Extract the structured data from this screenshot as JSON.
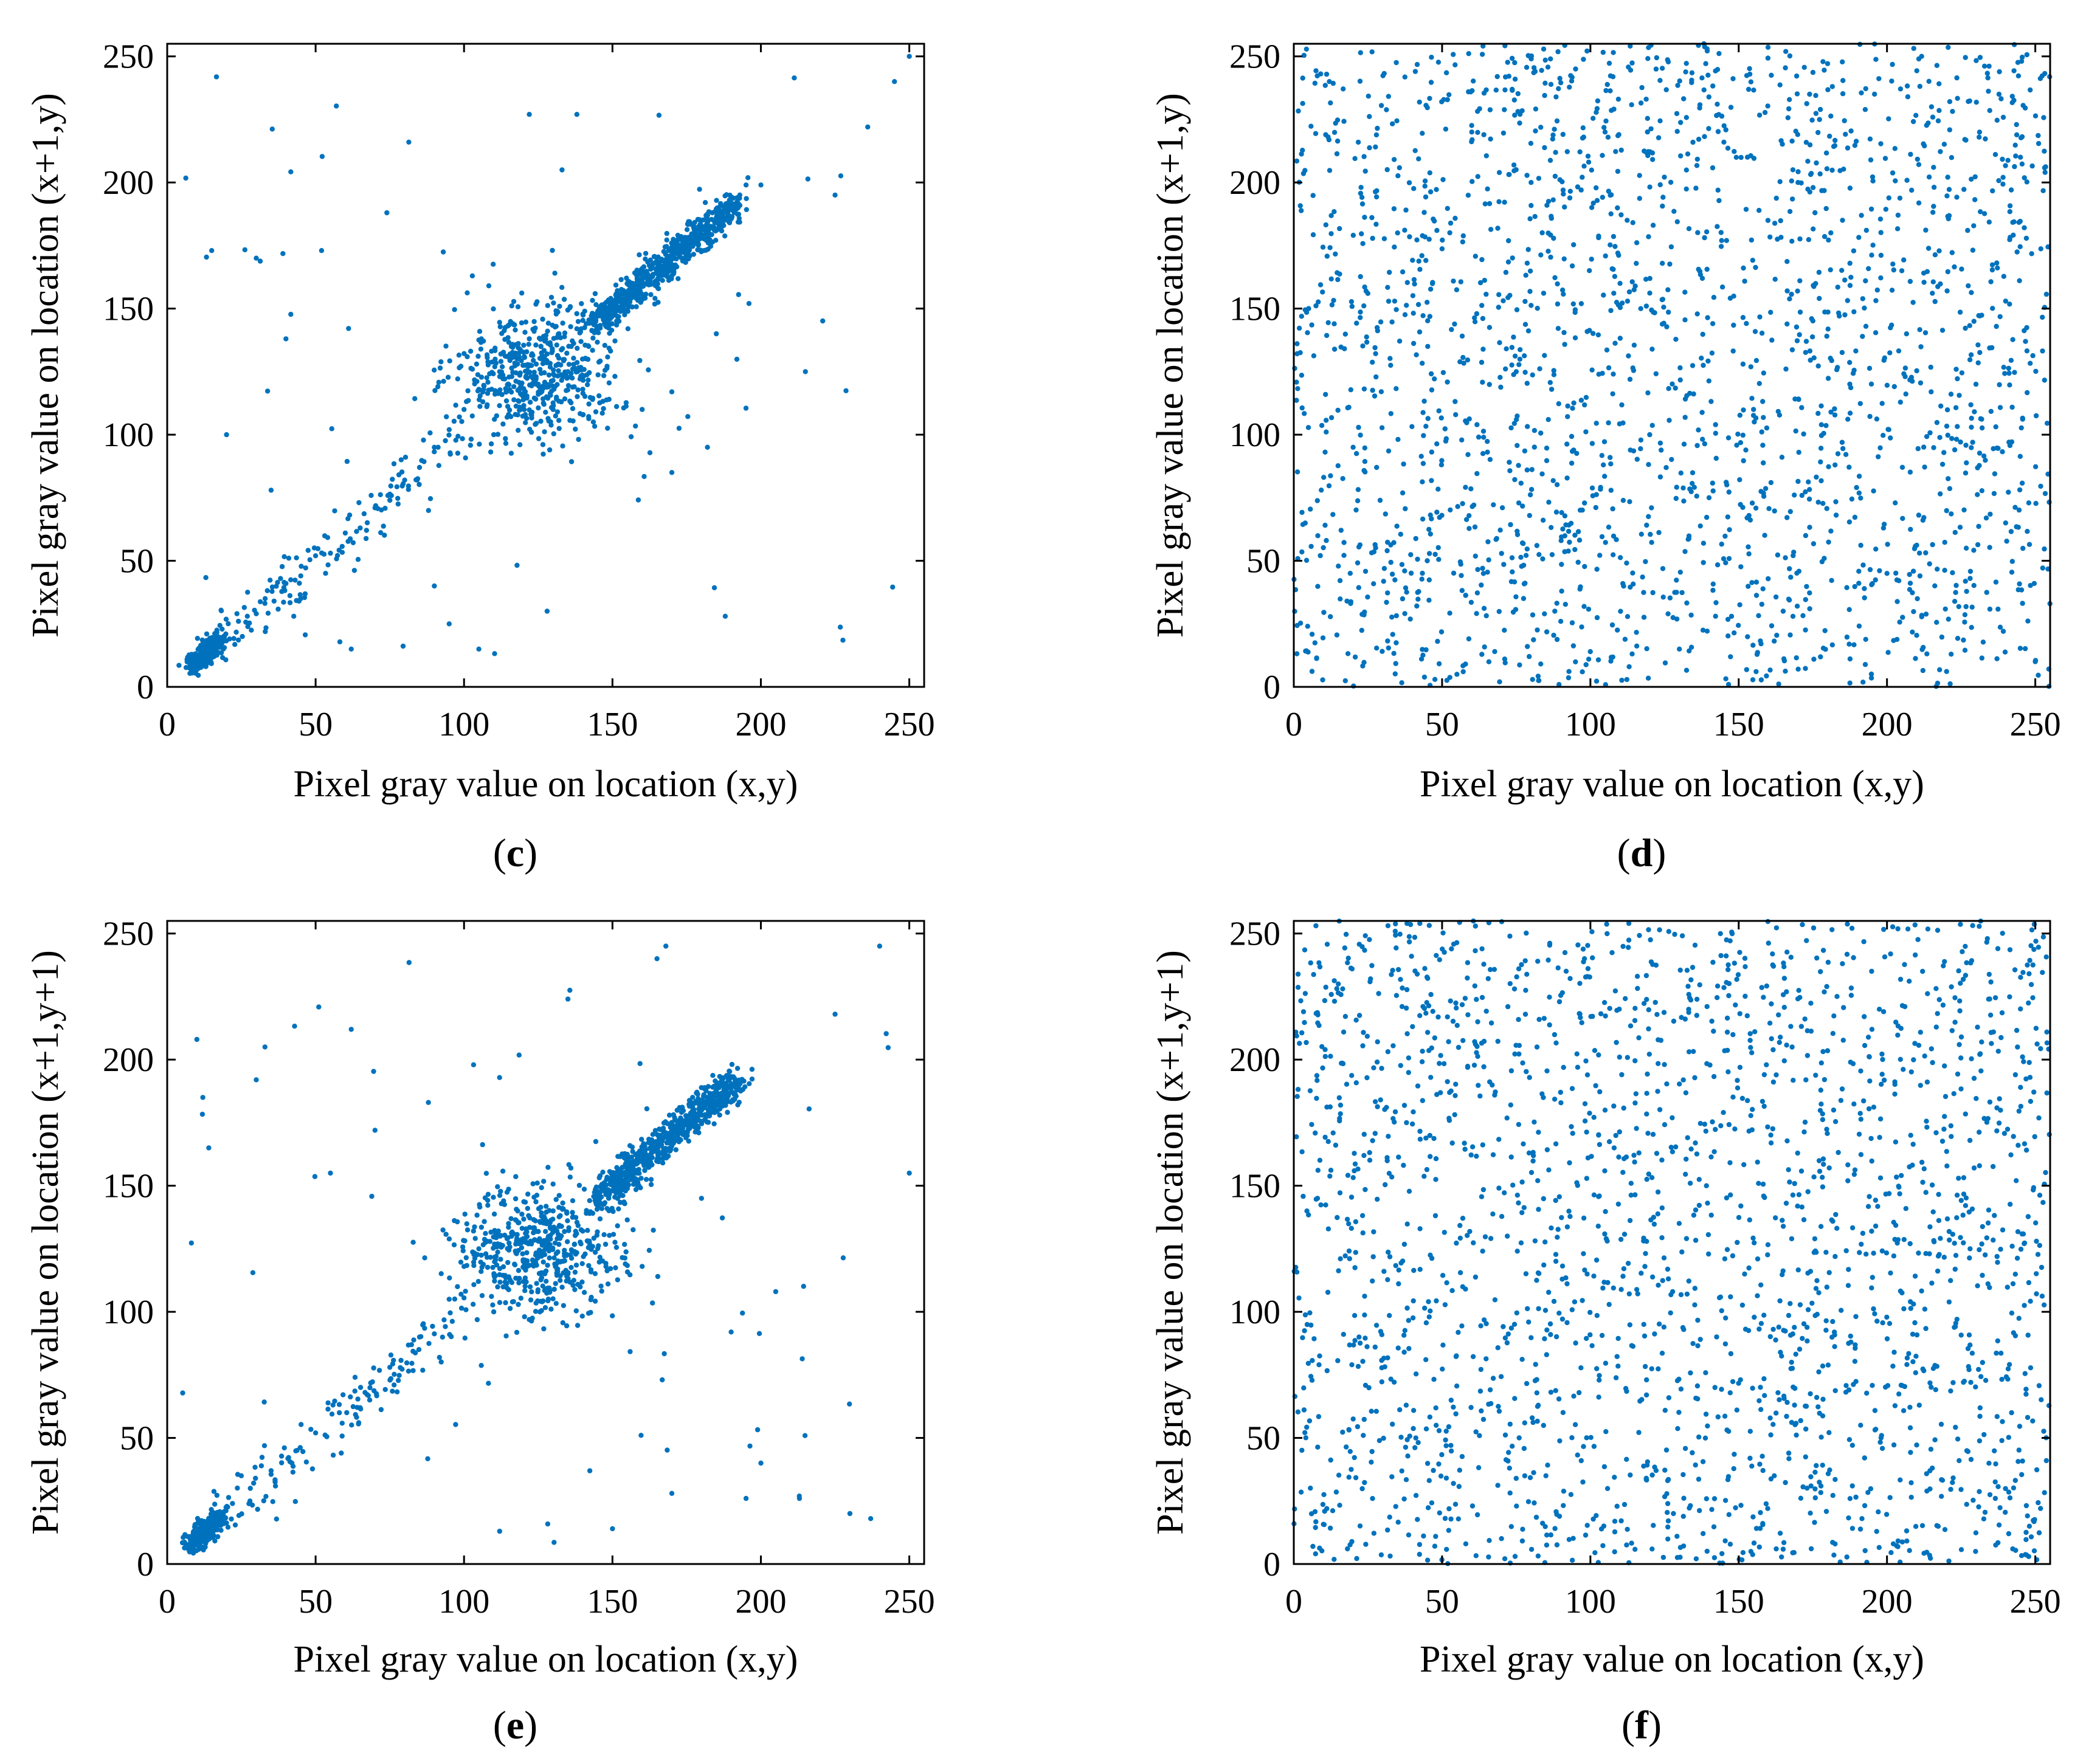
{
  "colors": {
    "points": "#0072BD",
    "axes": "#000000",
    "background": "#ffffff"
  },
  "chart_data": [
    {
      "id": "c",
      "type": "scatter",
      "panel_label": "c",
      "xlabel": "Pixel gray value on location (x,y)",
      "ylabel": "Pixel gray value on location (x+1,y)",
      "xlim": [
        0,
        255
      ],
      "ylim": [
        0,
        255
      ],
      "xticks": [
        0,
        50,
        100,
        150,
        200,
        250
      ],
      "yticks": [
        0,
        50,
        100,
        150,
        200,
        250
      ],
      "pattern": "correlated",
      "points": [
        [
          8,
          10
        ],
        [
          10,
          12
        ],
        [
          12,
          14
        ],
        [
          14,
          13
        ],
        [
          15,
          17
        ],
        [
          17,
          16
        ],
        [
          19,
          20
        ],
        [
          21,
          19
        ],
        [
          24,
          26
        ],
        [
          27,
          28
        ],
        [
          30,
          29
        ],
        [
          33,
          35
        ],
        [
          36,
          34
        ],
        [
          40,
          41
        ],
        [
          45,
          44
        ],
        [
          50,
          52
        ],
        [
          55,
          53
        ],
        [
          60,
          61
        ],
        [
          65,
          63
        ],
        [
          70,
          71
        ],
        [
          75,
          74
        ],
        [
          80,
          82
        ],
        [
          85,
          87
        ],
        [
          90,
          95
        ],
        [
          95,
          102
        ],
        [
          100,
          110
        ],
        [
          105,
          118
        ],
        [
          110,
          100
        ],
        [
          112,
          125
        ],
        [
          115,
          108
        ],
        [
          118,
          130
        ],
        [
          120,
          115
        ],
        [
          122,
          138
        ],
        [
          125,
          120
        ],
        [
          128,
          132
        ],
        [
          130,
          110
        ],
        [
          132,
          140
        ],
        [
          135,
          125
        ],
        [
          138,
          142
        ],
        [
          140,
          118
        ],
        [
          142,
          135
        ],
        [
          145,
          147
        ],
        [
          150,
          151
        ],
        [
          155,
          154
        ],
        [
          160,
          161
        ],
        [
          165,
          166
        ],
        [
          170,
          171
        ],
        [
          175,
          176
        ],
        [
          180,
          182
        ],
        [
          185,
          186
        ],
        [
          190,
          192
        ],
        [
          195,
          199
        ],
        [
          200,
          199
        ],
        [
          122,
          227
        ],
        [
          138,
          227
        ],
        [
          133,
          205
        ],
        [
          150,
          150
        ],
        [
          74,
          188
        ],
        [
          40,
          138
        ],
        [
          15,
          173
        ],
        [
          30,
          170
        ],
        [
          52,
          173
        ],
        [
          90,
          40
        ],
        [
          95,
          25
        ],
        [
          105,
          15
        ],
        [
          170,
          85
        ],
        [
          188,
          28
        ],
        [
          182,
          95
        ],
        [
          215,
          125
        ],
        [
          225,
          195
        ],
        [
          236,
          222
        ],
        [
          245,
          240
        ],
        [
          250,
          250
        ],
        [
          20,
          100
        ],
        [
          35,
          78
        ],
        [
          62,
          15
        ],
        [
          128,
          30
        ],
        [
          160,
          110
        ],
        [
          170,
          117
        ],
        [
          185,
          140
        ],
        [
          196,
          152
        ]
      ]
    },
    {
      "id": "d",
      "type": "scatter",
      "panel_label": "d",
      "xlabel": "Pixel gray value on location (x,y)",
      "ylabel": "Pixel gray value on location (x+1,y)",
      "xlim": [
        0,
        255
      ],
      "ylim": [
        0,
        255
      ],
      "xticks": [
        0,
        50,
        100,
        150,
        200,
        250
      ],
      "yticks": [
        0,
        50,
        100,
        150,
        200,
        250
      ],
      "pattern": "uniform",
      "points": [
        [
          12,
          240
        ],
        [
          35,
          180
        ],
        [
          60,
          220
        ],
        [
          88,
          30
        ],
        [
          110,
          160
        ],
        [
          140,
          75
        ],
        [
          170,
          200
        ],
        [
          200,
          45
        ],
        [
          230,
          120
        ],
        [
          250,
          10
        ],
        [
          20,
          95
        ],
        [
          45,
          50
        ],
        [
          75,
          125
        ],
        [
          95,
          245
        ],
        [
          130,
          15
        ],
        [
          155,
          110
        ],
        [
          185,
          185
        ],
        [
          215,
          230
        ],
        [
          240,
          65
        ],
        [
          5,
          150
        ],
        [
          55,
          5
        ],
        [
          80,
          200
        ],
        [
          120,
          100
        ],
        [
          165,
          30
        ],
        [
          205,
          165
        ],
        [
          245,
          210
        ]
      ]
    },
    {
      "id": "e",
      "type": "scatter",
      "panel_label": "e",
      "xlabel": "Pixel gray value on location (x,y)",
      "ylabel": "Pixel gray value on location (x+1,y+1)",
      "xlim": [
        0,
        255
      ],
      "ylim": [
        0,
        255
      ],
      "xticks": [
        0,
        50,
        100,
        150,
        200,
        250
      ],
      "yticks": [
        0,
        50,
        100,
        150,
        200,
        250
      ],
      "pattern": "correlated",
      "points": [
        [
          8,
          10
        ],
        [
          10,
          12
        ],
        [
          12,
          15
        ],
        [
          15,
          14
        ],
        [
          18,
          20
        ],
        [
          22,
          24
        ],
        [
          28,
          30
        ],
        [
          35,
          37
        ],
        [
          42,
          40
        ],
        [
          50,
          52
        ],
        [
          58,
          60
        ],
        [
          65,
          62
        ],
        [
          75,
          78
        ],
        [
          85,
          90
        ],
        [
          95,
          105
        ],
        [
          100,
          118
        ],
        [
          105,
          125
        ],
        [
          110,
          100
        ],
        [
          115,
          135
        ],
        [
          120,
          112
        ],
        [
          125,
          128
        ],
        [
          130,
          140
        ],
        [
          135,
          115
        ],
        [
          140,
          132
        ],
        [
          145,
          146
        ],
        [
          150,
          152
        ],
        [
          155,
          154
        ],
        [
          160,
          162
        ],
        [
          165,
          166
        ],
        [
          170,
          172
        ],
        [
          175,
          176
        ],
        [
          180,
          183
        ],
        [
          185,
          187
        ],
        [
          190,
          190
        ],
        [
          10,
          208
        ],
        [
          12,
          185
        ],
        [
          14,
          165
        ],
        [
          30,
          192
        ],
        [
          62,
          212
        ],
        [
          135,
          224
        ],
        [
          165,
          240
        ],
        [
          168,
          245
        ],
        [
          88,
          183
        ],
        [
          70,
          172
        ],
        [
          55,
          155
        ],
        [
          112,
          13
        ],
        [
          150,
          14
        ],
        [
          170,
          28
        ],
        [
          195,
          26
        ],
        [
          200,
          40
        ],
        [
          213,
          26
        ],
        [
          230,
          20
        ],
        [
          237,
          18
        ],
        [
          250,
          155
        ],
        [
          240,
          245
        ],
        [
          225,
          218
        ],
        [
          205,
          108
        ],
        [
          190,
          92
        ],
        [
          180,
          145
        ],
        [
          160,
          118
        ]
      ]
    },
    {
      "id": "f",
      "type": "scatter",
      "panel_label": "f",
      "xlabel": "Pixel gray value on location (x,y)",
      "ylabel": "Pixel gray value on location (x+1,y+1)",
      "xlim": [
        0,
        255
      ],
      "ylim": [
        0,
        255
      ],
      "xticks": [
        0,
        50,
        100,
        150,
        200,
        250
      ],
      "yticks": [
        0,
        50,
        100,
        150,
        200,
        250
      ],
      "pattern": "uniform",
      "points": [
        [
          15,
          230
        ],
        [
          38,
          175
        ],
        [
          62,
          215
        ],
        [
          85,
          35
        ],
        [
          108,
          165
        ],
        [
          142,
          70
        ],
        [
          168,
          205
        ],
        [
          198,
          50
        ],
        [
          228,
          125
        ],
        [
          248,
          15
        ],
        [
          22,
          90
        ],
        [
          48,
          55
        ],
        [
          72,
          130
        ],
        [
          98,
          240
        ],
        [
          128,
          20
        ],
        [
          152,
          115
        ],
        [
          182,
          180
        ],
        [
          212,
          235
        ],
        [
          242,
          60
        ],
        [
          8,
          145
        ],
        [
          58,
          8
        ],
        [
          82,
          205
        ],
        [
          118,
          95
        ],
        [
          162,
          35
        ],
        [
          208,
          170
        ],
        [
          244,
          205
        ]
      ]
    }
  ]
}
